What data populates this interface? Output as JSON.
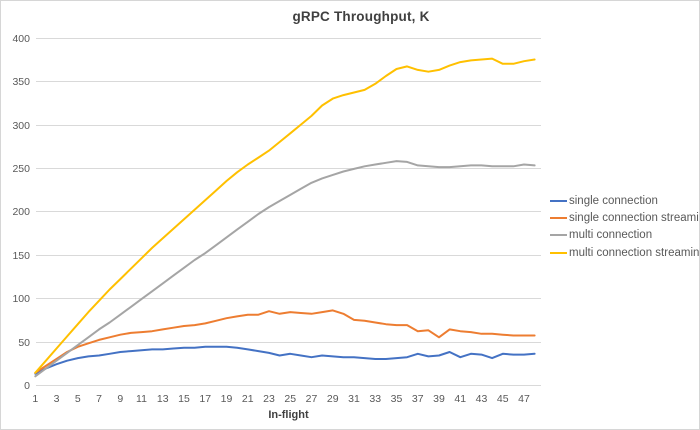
{
  "chart_data": {
    "type": "line",
    "title": "gRPC Throughput, K",
    "xlabel": "In-flight",
    "ylabel": "",
    "xlim": [
      1,
      48
    ],
    "ylim": [
      0,
      400
    ],
    "grid": "horizontal",
    "legend_position": "right",
    "x_tick_labels": [
      1,
      3,
      5,
      7,
      9,
      11,
      13,
      15,
      17,
      19,
      21,
      23,
      25,
      27,
      29,
      31,
      33,
      35,
      37,
      39,
      41,
      43,
      45,
      47
    ],
    "y_ticks": [
      0,
      50,
      100,
      150,
      200,
      250,
      300,
      350,
      400
    ],
    "x": [
      1,
      2,
      3,
      4,
      5,
      6,
      7,
      8,
      9,
      10,
      11,
      12,
      13,
      14,
      15,
      16,
      17,
      18,
      19,
      20,
      21,
      22,
      23,
      24,
      25,
      26,
      27,
      28,
      29,
      30,
      31,
      32,
      33,
      34,
      35,
      36,
      37,
      38,
      39,
      40,
      41,
      42,
      43,
      44,
      45,
      46,
      47,
      48
    ],
    "series": [
      {
        "name": "single connection",
        "color": "#4472C4",
        "values": [
          13,
          19,
          24,
          28,
          31,
          33,
          34,
          36,
          38,
          39,
          40,
          41,
          41,
          42,
          43,
          43,
          44,
          44,
          44,
          43,
          41,
          39,
          37,
          34,
          36,
          34,
          32,
          34,
          33,
          32,
          32,
          31,
          30,
          30,
          31,
          32,
          36,
          33,
          34,
          38,
          32,
          36,
          35,
          31,
          36,
          35,
          35,
          36
        ]
      },
      {
        "name": "single connection streaming",
        "color": "#ED7D31",
        "values": [
          14,
          22,
          30,
          38,
          44,
          48,
          52,
          55,
          58,
          60,
          61,
          62,
          64,
          66,
          68,
          69,
          71,
          74,
          77,
          79,
          81,
          81,
          85,
          82,
          84,
          83,
          82,
          84,
          86,
          82,
          75,
          74,
          72,
          70,
          69,
          69,
          62,
          63,
          55,
          64,
          62,
          61,
          59,
          59,
          58,
          57,
          57,
          57
        ]
      },
      {
        "name": "multi connection",
        "color": "#A5A5A5",
        "values": [
          10,
          19,
          28,
          37,
          46,
          55,
          64,
          72,
          81,
          90,
          99,
          108,
          117,
          126,
          135,
          144,
          152,
          161,
          170,
          179,
          188,
          197,
          205,
          212,
          219,
          226,
          233,
          238,
          242,
          246,
          249,
          252,
          254,
          256,
          258,
          257,
          253,
          252,
          251,
          251,
          252,
          253,
          253,
          252,
          252,
          252,
          254,
          253
        ]
      },
      {
        "name": "multi connection streaming",
        "color": "#FFC000",
        "values": [
          14,
          28,
          42,
          56,
          70,
          84,
          97,
          110,
          122,
          134,
          146,
          158,
          169,
          180,
          191,
          202,
          213,
          224,
          235,
          245,
          254,
          262,
          270,
          280,
          290,
          300,
          310,
          322,
          330,
          334,
          337,
          340,
          347,
          356,
          364,
          367,
          363,
          361,
          363,
          368,
          372,
          374,
          375,
          376,
          370,
          370,
          373,
          375
        ]
      }
    ],
    "colors": {
      "gridline": "#D9D9D9",
      "tick_text": "#595959",
      "title_text": "#404040"
    }
  }
}
